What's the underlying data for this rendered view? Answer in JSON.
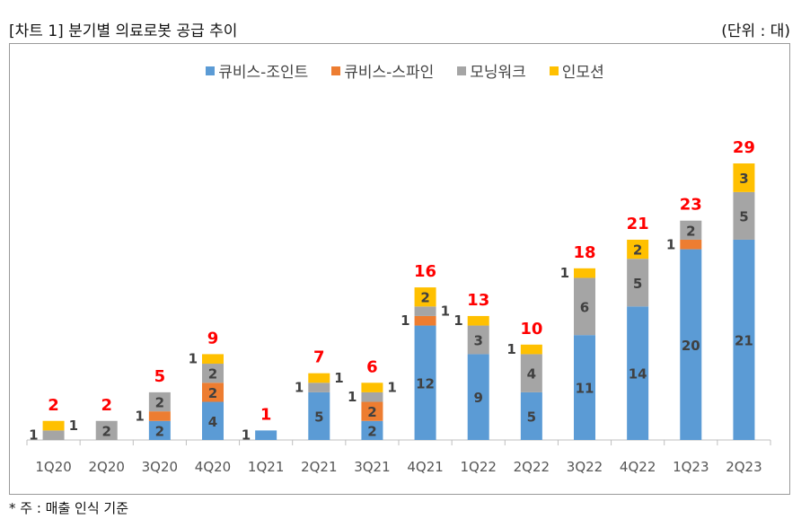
{
  "header": {
    "title": "[차트 1] 분기별 의료로봇 공급 추이",
    "unit": "(단위 : 대)"
  },
  "footnote": "* 주 : 매출 인식 기준",
  "chart_data": {
    "type": "bar",
    "stacked": true,
    "legend_position": "top",
    "grid": false,
    "categories": [
      "1Q20",
      "2Q20",
      "3Q20",
      "4Q20",
      "1Q21",
      "2Q21",
      "3Q21",
      "4Q21",
      "1Q22",
      "2Q22",
      "3Q22",
      "4Q22",
      "1Q23",
      "2Q23"
    ],
    "series": [
      {
        "name": "큐비스-조인트",
        "color": "#5b9bd5",
        "values": [
          0,
          0,
          2,
          4,
          1,
          5,
          2,
          12,
          9,
          5,
          11,
          14,
          20,
          21
        ]
      },
      {
        "name": "큐비스-스파인",
        "color": "#ed7d31",
        "values": [
          0,
          0,
          1,
          2,
          0,
          0,
          2,
          1,
          0,
          0,
          0,
          0,
          1,
          0
        ]
      },
      {
        "name": "모닝워크",
        "color": "#a5a5a5",
        "values": [
          1,
          2,
          2,
          2,
          0,
          1,
          1,
          1,
          3,
          4,
          6,
          5,
          2,
          5
        ]
      },
      {
        "name": "인모션",
        "color": "#ffc000",
        "values": [
          1,
          0,
          0,
          1,
          0,
          1,
          1,
          2,
          1,
          1,
          1,
          2,
          0,
          3
        ]
      }
    ],
    "totals": [
      2,
      2,
      5,
      9,
      1,
      7,
      6,
      16,
      13,
      10,
      18,
      21,
      23,
      29
    ],
    "total_label_color": "#ff0000",
    "ylim": [
      0,
      29
    ]
  }
}
